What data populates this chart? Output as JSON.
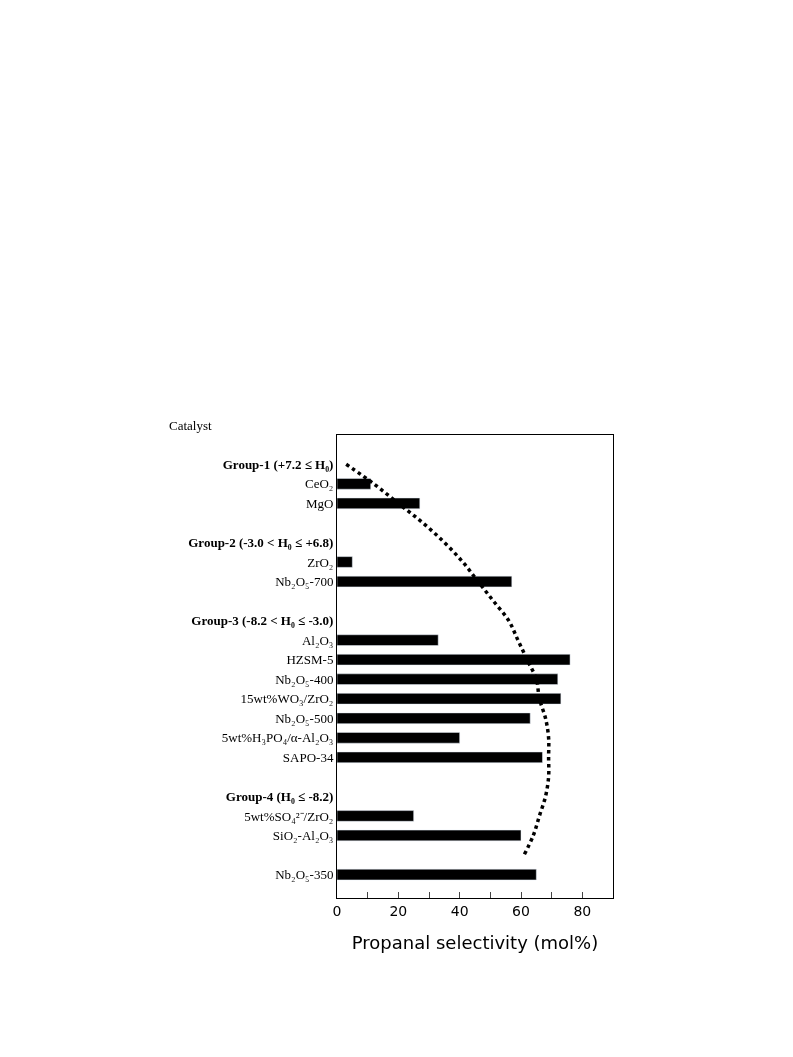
{
  "chart_data": {
    "type": "bar",
    "orientation": "horizontal",
    "xlabel": "Propanal selectivity (mol%)",
    "ylabel": "Catalyst",
    "categories": [
      "Group-1 (+7.2 ≤ H₀)",
      "CeO₂",
      "MgO",
      null,
      "Group-2 (-3.0 < H₀ ≤ +6.8)",
      "ZrO₂",
      "Nb₂O₅-700",
      null,
      "Group-3 (-8.2 < H₀ ≤ -3.0)",
      "Al₂O₃",
      "HZSM-5",
      "Nb₂O₅-400",
      "15wt%WO₃/ZrO₂",
      "Nb₂O₅-500",
      "5wt%H₃PO₄/α-Al₂O₃",
      "SAPO-34",
      null,
      "Group-4 (H₀ ≤ -8.2)",
      "5wt%SO₄²⁻/ZrO₂",
      "SiO₂-Al₂O₃",
      null,
      "Nb₂O₅-350"
    ],
    "series": [
      {
        "color": "#000000",
        "values": [
          null,
          11,
          27,
          null,
          null,
          5,
          57,
          null,
          null,
          33,
          76,
          72,
          73,
          63,
          40,
          67,
          null,
          null,
          25,
          60,
          null,
          65
        ]
      },
      {
        "type": "line",
        "color": "#000000",
        "line_style": "dotted",
        "values": [
          3,
          12,
          20,
          28,
          35,
          41,
          46,
          51,
          56,
          59,
          62,
          65,
          66,
          68,
          69,
          69,
          69,
          68,
          66,
          64,
          61,
          null
        ]
      }
    ],
    "xlim": [
      0,
      90
    ],
    "xticks": [
      0,
      {
        "value": 10,
        "label": null
      },
      20,
      {
        "value": 30,
        "label": null
      },
      40,
      {
        "value": 50,
        "label": null
      },
      60,
      {
        "value": 70,
        "label": null
      },
      80
    ],
    "marker": "none"
  }
}
